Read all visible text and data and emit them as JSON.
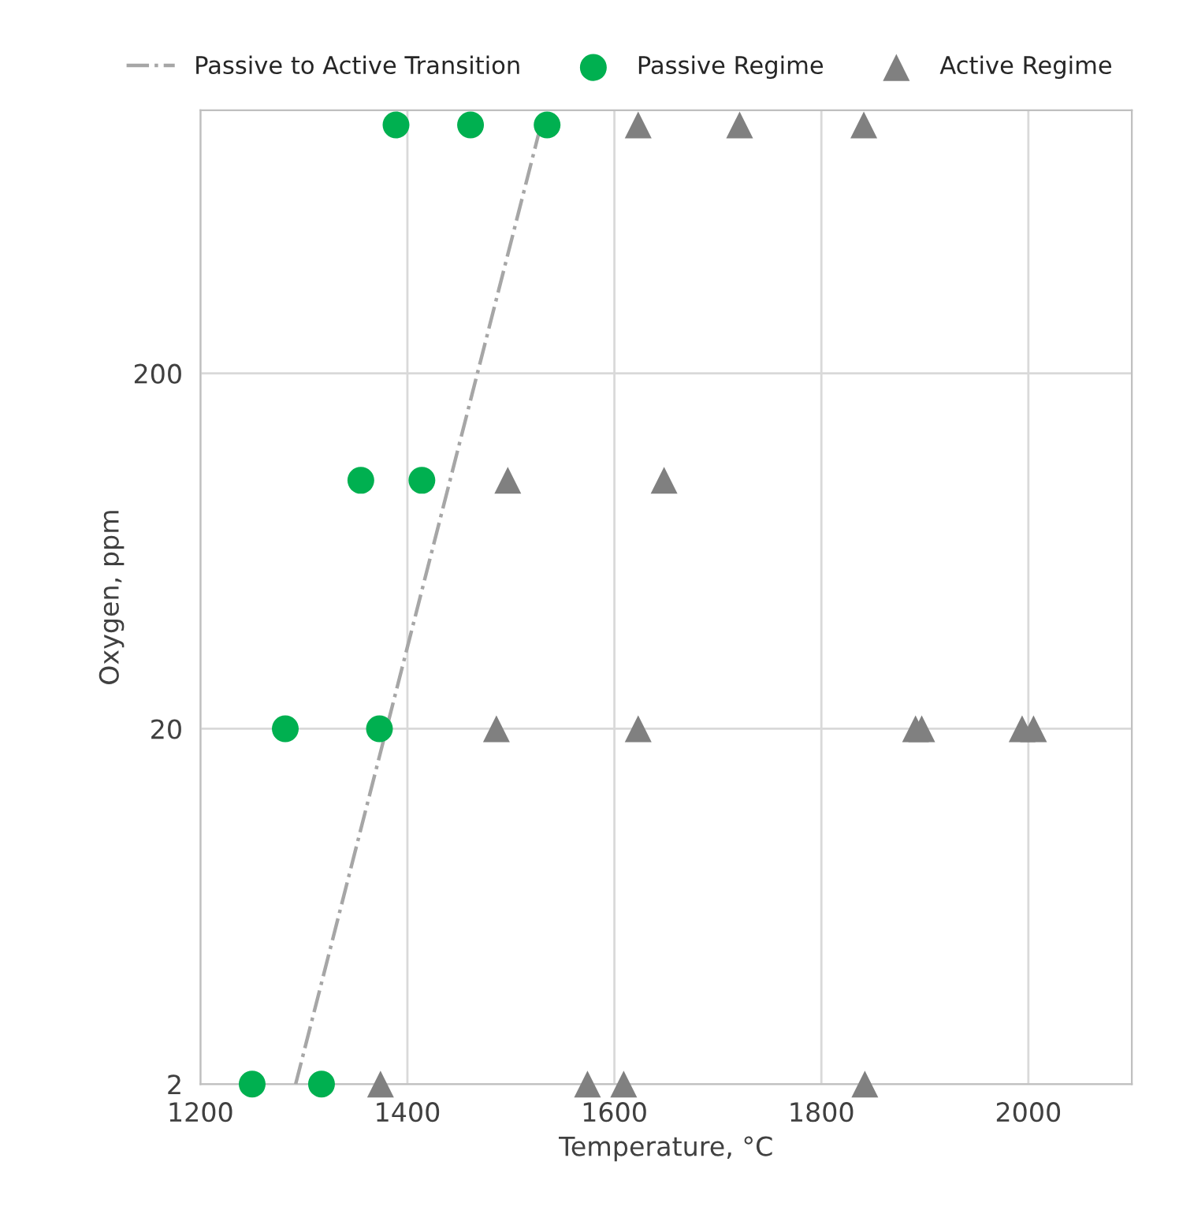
{
  "chart_data": {
    "type": "scatter",
    "xlabel": "Temperature, °C",
    "ylabel": "Oxygen, ppm",
    "log": "y",
    "xlim": [
      1200,
      2100
    ],
    "xticks": [
      1200,
      1400,
      1600,
      1800,
      2000
    ],
    "ylim": [
      2,
      1100
    ],
    "yticks": [
      2,
      20,
      200
    ],
    "grid": true,
    "legend": "top",
    "series": [
      {
        "name": "Passive to Active Transition",
        "type": "line",
        "line_style": "dashdot",
        "marker": "none",
        "color": "#a6a6a6",
        "x": [
          1292,
          1529
        ],
        "values": [
          2,
          1000
        ]
      },
      {
        "name": "Passive Regime",
        "marker": "circle",
        "color": "#00b050",
        "x": [
          1389,
          1461,
          1535,
          1355,
          1414,
          1282,
          1373,
          1250,
          1317
        ],
        "values": [
          1000,
          1000,
          1000,
          100,
          100,
          20,
          20,
          2,
          2
        ]
      },
      {
        "name": "Active Regime",
        "marker": "triangle",
        "color": "#808080",
        "x": [
          1623,
          1721,
          1841,
          1497,
          1648,
          1486,
          1623,
          1891,
          1897,
          1994,
          2005,
          1374,
          1574,
          1609,
          1842
        ],
        "values": [
          1000,
          1000,
          1000,
          100,
          100,
          20,
          20,
          20,
          20,
          20,
          20,
          2,
          2,
          2,
          2
        ]
      }
    ]
  }
}
